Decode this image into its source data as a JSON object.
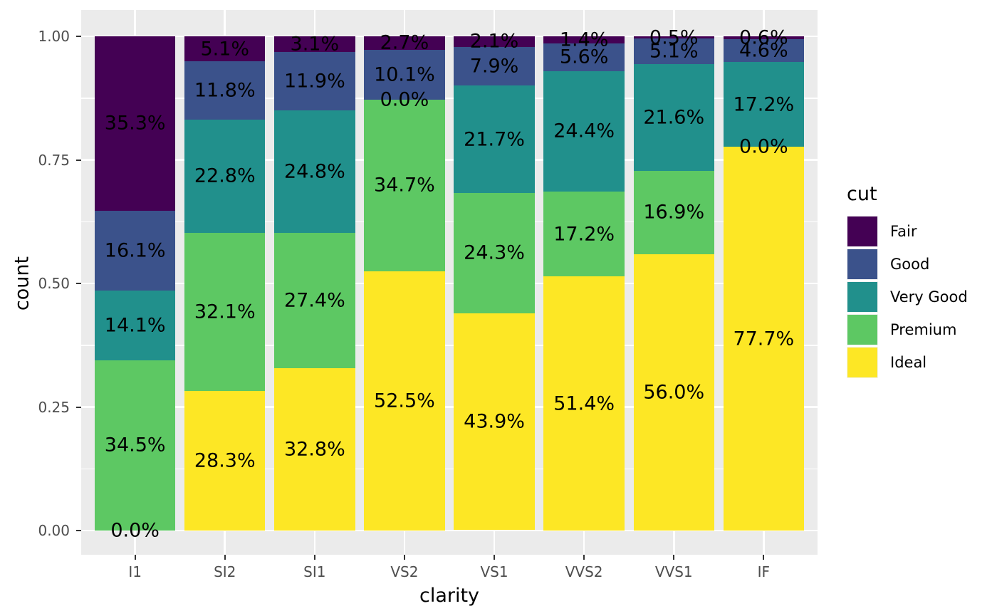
{
  "figure": {
    "background": "#FFFFFF",
    "panel_background": "#EBEBEB",
    "grid_color": "#FFFFFF",
    "tick_mark_color": "#333333",
    "axis_text_color": "#4D4D4D",
    "label_text_color": "#000000"
  },
  "chart_data": {
    "type": "bar",
    "subtype": "stacked-proportion",
    "title": "",
    "xlabel": "clarity",
    "ylabel": "count",
    "ylim": [
      0,
      1
    ],
    "y_ticks": [
      "0.00",
      "0.25",
      "0.50",
      "0.75",
      "1.00"
    ],
    "y_minor_ticks": [
      0.125,
      0.375,
      0.625,
      0.875
    ],
    "grid": true,
    "legend": {
      "title": "cut",
      "position": "right",
      "entries": [
        "Fair",
        "Good",
        "Very Good",
        "Premium",
        "Ideal"
      ]
    },
    "categories": [
      "I1",
      "SI2",
      "SI1",
      "VS2",
      "VS1",
      "VVS2",
      "VVS1",
      "IF"
    ],
    "stack_order_top_to_bottom": [
      "Fair",
      "Good",
      "Very Good",
      "Premium",
      "Ideal"
    ],
    "series": [
      {
        "name": "Fair",
        "color": "#440154",
        "values_pct": [
          35.3,
          5.1,
          3.1,
          2.7,
          2.1,
          1.4,
          0.5,
          0.6
        ]
      },
      {
        "name": "Good",
        "color": "#3B528B",
        "values_pct": [
          16.1,
          11.8,
          11.9,
          10.1,
          7.9,
          5.6,
          5.1,
          4.6
        ]
      },
      {
        "name": "Very Good",
        "color": "#21908C",
        "values_pct": [
          14.1,
          22.8,
          24.8,
          0.0,
          21.7,
          24.4,
          21.6,
          17.2
        ]
      },
      {
        "name": "Premium",
        "color": "#5DC863",
        "values_pct": [
          34.5,
          32.1,
          27.4,
          34.7,
          24.3,
          17.2,
          16.9,
          0.0
        ]
      },
      {
        "name": "Ideal",
        "color": "#FDE725",
        "values_pct": [
          0.0,
          28.3,
          32.8,
          52.5,
          43.9,
          51.4,
          56.0,
          77.7
        ]
      }
    ],
    "label_format": "percent_one_decimal"
  }
}
